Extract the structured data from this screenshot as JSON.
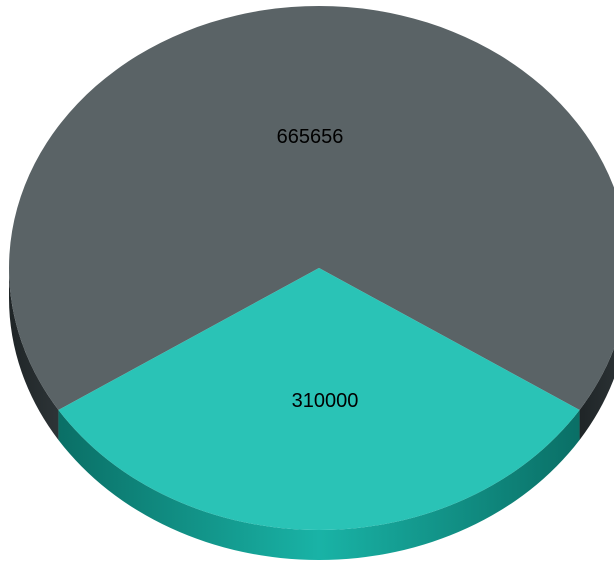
{
  "chart_data": {
    "type": "pie",
    "style": "3d",
    "slices": [
      {
        "value": 665656,
        "label": "665656",
        "color": "#5a6366",
        "side_color": "#2a3033"
      },
      {
        "value": 310000,
        "label": "310000",
        "color": "#2ac3b6",
        "side_color": "#0e8f84"
      }
    ],
    "legend": "none"
  }
}
